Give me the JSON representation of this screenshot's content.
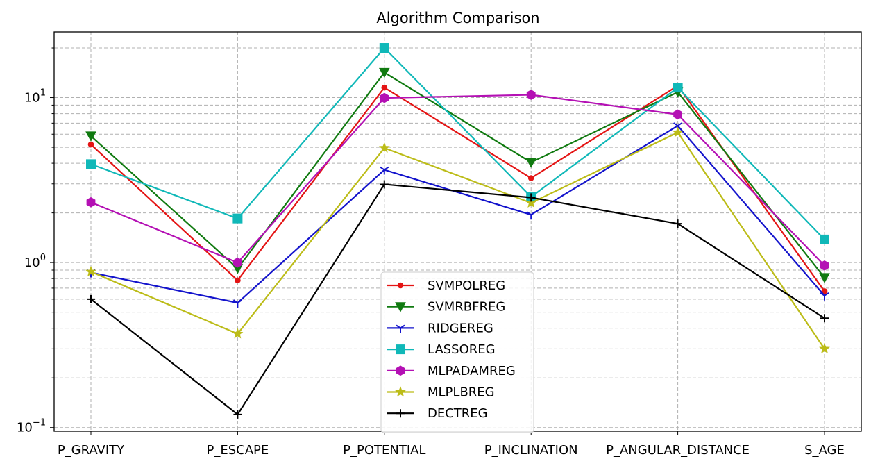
{
  "chart_data": {
    "type": "line",
    "title": "Algorithm Comparison",
    "xlabel": "",
    "ylabel": "",
    "y_scale": "log",
    "ylim": [
      0.095,
      25
    ],
    "grid": true,
    "legend_position": "lower-center",
    "categories": [
      "P_GRAVITY",
      "P_ESCAPE",
      "P_POTENTIAL",
      "P_INCLINATION",
      "P_ANGULAR_DISTANCE",
      "S_AGE"
    ],
    "y_major_ticks": [
      {
        "value": 0.1,
        "base": "10",
        "exp": "−1"
      },
      {
        "value": 1,
        "base": "10",
        "exp": "0"
      },
      {
        "value": 10,
        "base": "10",
        "exp": "1"
      }
    ],
    "series": [
      {
        "name": "SVMPOLREG",
        "color": "#e41414",
        "marker": "dot",
        "values": [
          5.2,
          0.78,
          11.5,
          3.25,
          11.8,
          0.67
        ]
      },
      {
        "name": "SVMRBFREG",
        "color": "#107a10",
        "marker": "triangle-down",
        "values": [
          5.85,
          0.92,
          14.2,
          4.05,
          10.8,
          0.81
        ]
      },
      {
        "name": "RIDGEREG",
        "color": "#1414cc",
        "marker": "tri-down",
        "values": [
          0.87,
          0.57,
          3.65,
          1.95,
          6.75,
          0.63
        ]
      },
      {
        "name": "LASSOREG",
        "color": "#10b8b8",
        "marker": "square",
        "values": [
          3.95,
          1.85,
          20.0,
          2.5,
          11.5,
          1.38
        ]
      },
      {
        "name": "MLPADAMREG",
        "color": "#b410b4",
        "marker": "hexagon",
        "values": [
          2.32,
          1.0,
          9.95,
          10.4,
          7.9,
          0.96
        ]
      },
      {
        "name": "MLPLBREG",
        "color": "#bcbc18",
        "marker": "star",
        "values": [
          0.88,
          0.37,
          4.95,
          2.3,
          6.15,
          0.3
        ]
      },
      {
        "name": "DECTREG",
        "color": "#000000",
        "marker": "plus",
        "values": [
          0.6,
          0.12,
          2.98,
          2.48,
          1.72,
          0.46
        ]
      }
    ]
  }
}
